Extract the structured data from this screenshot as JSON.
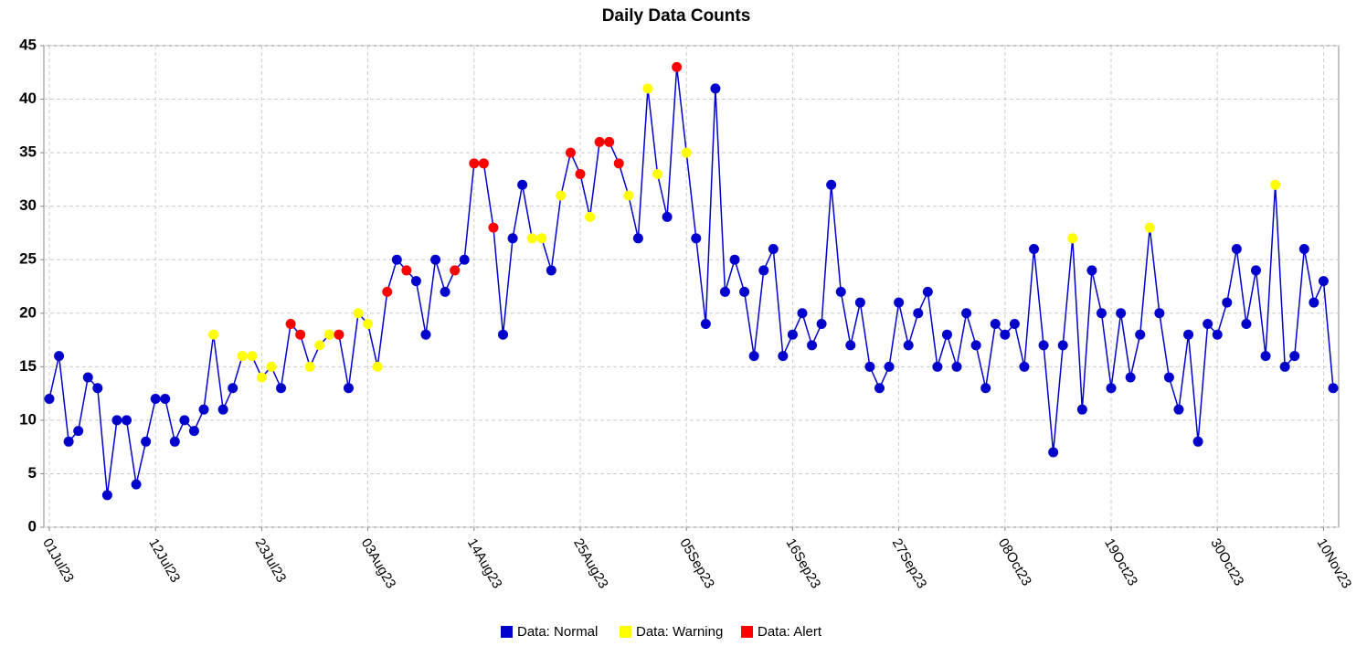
{
  "chart_data": {
    "type": "line",
    "title": "Daily Data Counts",
    "categories": [
      "01Jul23",
      null,
      null,
      null,
      null,
      null,
      null,
      null,
      null,
      null,
      null,
      "12Jul23",
      null,
      null,
      null,
      null,
      null,
      null,
      null,
      null,
      null,
      null,
      "23Jul23",
      null,
      null,
      null,
      null,
      null,
      null,
      null,
      null,
      null,
      null,
      "03Aug23",
      null,
      null,
      null,
      null,
      null,
      null,
      null,
      null,
      null,
      null,
      "14Aug23",
      null,
      null,
      null,
      null,
      null,
      null,
      null,
      null,
      null,
      null,
      "25Aug23",
      null,
      null,
      null,
      null,
      null,
      null,
      null,
      null,
      null,
      null,
      "05Sep23",
      null,
      null,
      null,
      null,
      null,
      null,
      null,
      null,
      null,
      null,
      "16Sep23",
      null,
      null,
      null,
      null,
      null,
      null,
      null,
      null,
      null,
      null,
      "27Sep23",
      null,
      null,
      null,
      null,
      null,
      null,
      null,
      null,
      null,
      null,
      "08Oct23",
      null,
      null,
      null,
      null,
      null,
      null,
      null,
      null,
      null,
      null,
      "19Oct23",
      null,
      null,
      null,
      null,
      null,
      null,
      null,
      null,
      null,
      null,
      "30Oct23",
      null,
      null,
      null,
      null,
      null,
      null,
      null,
      null,
      null,
      null,
      "10Nov23",
      null
    ],
    "values": [
      12,
      16,
      8,
      9,
      14,
      13,
      3,
      10,
      10,
      4,
      8,
      12,
      12,
      8,
      10,
      9,
      11,
      18,
      11,
      13,
      16,
      16,
      14,
      15,
      13,
      19,
      18,
      15,
      17,
      18,
      18,
      13,
      20,
      19,
      15,
      22,
      25,
      24,
      23,
      18,
      25,
      22,
      24,
      25,
      34,
      34,
      28,
      18,
      27,
      32,
      27,
      27,
      24,
      31,
      35,
      33,
      29,
      36,
      36,
      34,
      31,
      27,
      41,
      33,
      29,
      43,
      35,
      27,
      19,
      41,
      22,
      25,
      22,
      16,
      24,
      26,
      16,
      18,
      20,
      17,
      19,
      32,
      22,
      17,
      21,
      15,
      13,
      15,
      21,
      17,
      20,
      22,
      15,
      18,
      15,
      20,
      17,
      13,
      19,
      18,
      19,
      15,
      26,
      17,
      7,
      17,
      27,
      11,
      24,
      20,
      13,
      20,
      14,
      18,
      28,
      20,
      14,
      11,
      18,
      8,
      19,
      18,
      21,
      26,
      19,
      24,
      16,
      32,
      15,
      16,
      26,
      21,
      23,
      13
    ],
    "point_status": [
      0,
      0,
      0,
      0,
      0,
      0,
      0,
      0,
      0,
      0,
      0,
      0,
      0,
      0,
      0,
      0,
      0,
      1,
      0,
      0,
      1,
      1,
      1,
      1,
      0,
      2,
      2,
      1,
      1,
      1,
      2,
      0,
      1,
      1,
      1,
      2,
      0,
      2,
      0,
      0,
      0,
      0,
      2,
      0,
      2,
      2,
      2,
      0,
      0,
      0,
      1,
      1,
      0,
      1,
      2,
      2,
      1,
      2,
      2,
      2,
      1,
      0,
      1,
      1,
      0,
      2,
      1,
      0,
      0,
      0,
      0,
      0,
      0,
      0,
      0,
      0,
      0,
      0,
      0,
      0,
      0,
      0,
      0,
      0,
      0,
      0,
      0,
      0,
      0,
      0,
      0,
      0,
      0,
      0,
      0,
      0,
      0,
      0,
      0,
      0,
      0,
      0,
      0,
      0,
      0,
      0,
      1,
      0,
      0,
      0,
      0,
      0,
      0,
      0,
      1,
      0,
      0,
      0,
      0,
      0,
      0,
      0,
      0,
      0,
      0,
      0,
      0,
      1,
      0,
      0,
      0,
      0,
      0,
      0
    ],
    "series": [
      {
        "name": "Data: Normal",
        "color": "#0000cc"
      },
      {
        "name": "Data: Warning",
        "color": "#ffff00"
      },
      {
        "name": "Data: Alert",
        "color": "#ff0000"
      }
    ],
    "line_color": "#0000cc",
    "ylim": [
      0,
      45
    ],
    "yticks": [
      0,
      5,
      10,
      15,
      20,
      25,
      30,
      35,
      40,
      45
    ],
    "grid": true
  }
}
